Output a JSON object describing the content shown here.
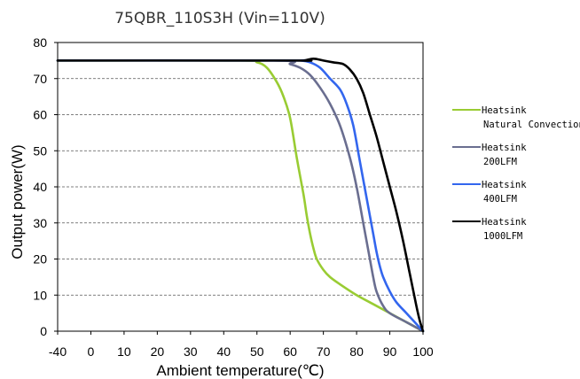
{
  "chart_data": {
    "type": "line",
    "title": "75QBR_110S3H (Vin=110V)",
    "xlabel": "Ambient temperature(℃)",
    "ylabel": "Output power(W)",
    "xlim": [
      -40,
      100
    ],
    "ylim": [
      0,
      80
    ],
    "x_ticks": [
      -40,
      0,
      10,
      20,
      30,
      40,
      50,
      60,
      70,
      80,
      90,
      100
    ],
    "y_ticks": [
      0,
      10,
      20,
      30,
      40,
      50,
      60,
      70,
      80
    ],
    "grid": "horizontal dashed",
    "legend_position": "right",
    "series": [
      {
        "name": "Heatsink Natural Convection",
        "legend_lines": [
          "Heatsink",
          "Natural Convection"
        ],
        "color": "#99cc33",
        "points": [
          [
            -40,
            75
          ],
          [
            45,
            75
          ],
          [
            50,
            74.5
          ],
          [
            53,
            73
          ],
          [
            56,
            69
          ],
          [
            58,
            65
          ],
          [
            60,
            59
          ],
          [
            62,
            48
          ],
          [
            64,
            38
          ],
          [
            65,
            32
          ],
          [
            66,
            27
          ],
          [
            67,
            23
          ],
          [
            68,
            20
          ],
          [
            70,
            17
          ],
          [
            72,
            15
          ],
          [
            75,
            13
          ],
          [
            80,
            10
          ],
          [
            85,
            7.5
          ],
          [
            90,
            5
          ],
          [
            95,
            2.5
          ],
          [
            100,
            0
          ]
        ]
      },
      {
        "name": "Heatsink 200LFM",
        "legend_lines": [
          "Heatsink",
          "200LFM"
        ],
        "color": "#6a6e90",
        "points": [
          [
            -40,
            75
          ],
          [
            55,
            75
          ],
          [
            60,
            74
          ],
          [
            63,
            73
          ],
          [
            66,
            71
          ],
          [
            69,
            67.5
          ],
          [
            72,
            63
          ],
          [
            75,
            57
          ],
          [
            78,
            48
          ],
          [
            80,
            40
          ],
          [
            82,
            30
          ],
          [
            84,
            20
          ],
          [
            85,
            15
          ],
          [
            86,
            11
          ],
          [
            88,
            7
          ],
          [
            90,
            5
          ],
          [
            95,
            2.5
          ],
          [
            100,
            0
          ]
        ]
      },
      {
        "name": "Heatsink 400LFM",
        "legend_lines": [
          "Heatsink",
          "400LFM"
        ],
        "color": "#3366ee",
        "points": [
          [
            -40,
            75
          ],
          [
            60,
            75
          ],
          [
            63,
            75
          ],
          [
            66,
            74.5
          ],
          [
            69,
            73
          ],
          [
            72,
            70
          ],
          [
            75,
            67
          ],
          [
            77,
            63
          ],
          [
            79,
            57
          ],
          [
            81,
            47
          ],
          [
            83,
            37
          ],
          [
            85,
            27
          ],
          [
            86,
            22
          ],
          [
            87,
            18
          ],
          [
            88,
            15
          ],
          [
            90,
            11
          ],
          [
            92,
            8
          ],
          [
            95,
            5
          ],
          [
            97,
            3
          ],
          [
            100,
            0
          ]
        ]
      },
      {
        "name": "Heatsink 1000LFM",
        "legend_lines": [
          "Heatsink",
          "1000LFM"
        ],
        "color": "#000000",
        "points": [
          [
            -40,
            75
          ],
          [
            60,
            75
          ],
          [
            64,
            75
          ],
          [
            67,
            75.5
          ],
          [
            70,
            75
          ],
          [
            73,
            74.5
          ],
          [
            76,
            74
          ],
          [
            78,
            72.5
          ],
          [
            80,
            70
          ],
          [
            82,
            66
          ],
          [
            84,
            60
          ],
          [
            86,
            54
          ],
          [
            88,
            47
          ],
          [
            90,
            40
          ],
          [
            92,
            33
          ],
          [
            94,
            25
          ],
          [
            96,
            16
          ],
          [
            98,
            7
          ],
          [
            99,
            3
          ],
          [
            100,
            0
          ]
        ]
      }
    ]
  }
}
